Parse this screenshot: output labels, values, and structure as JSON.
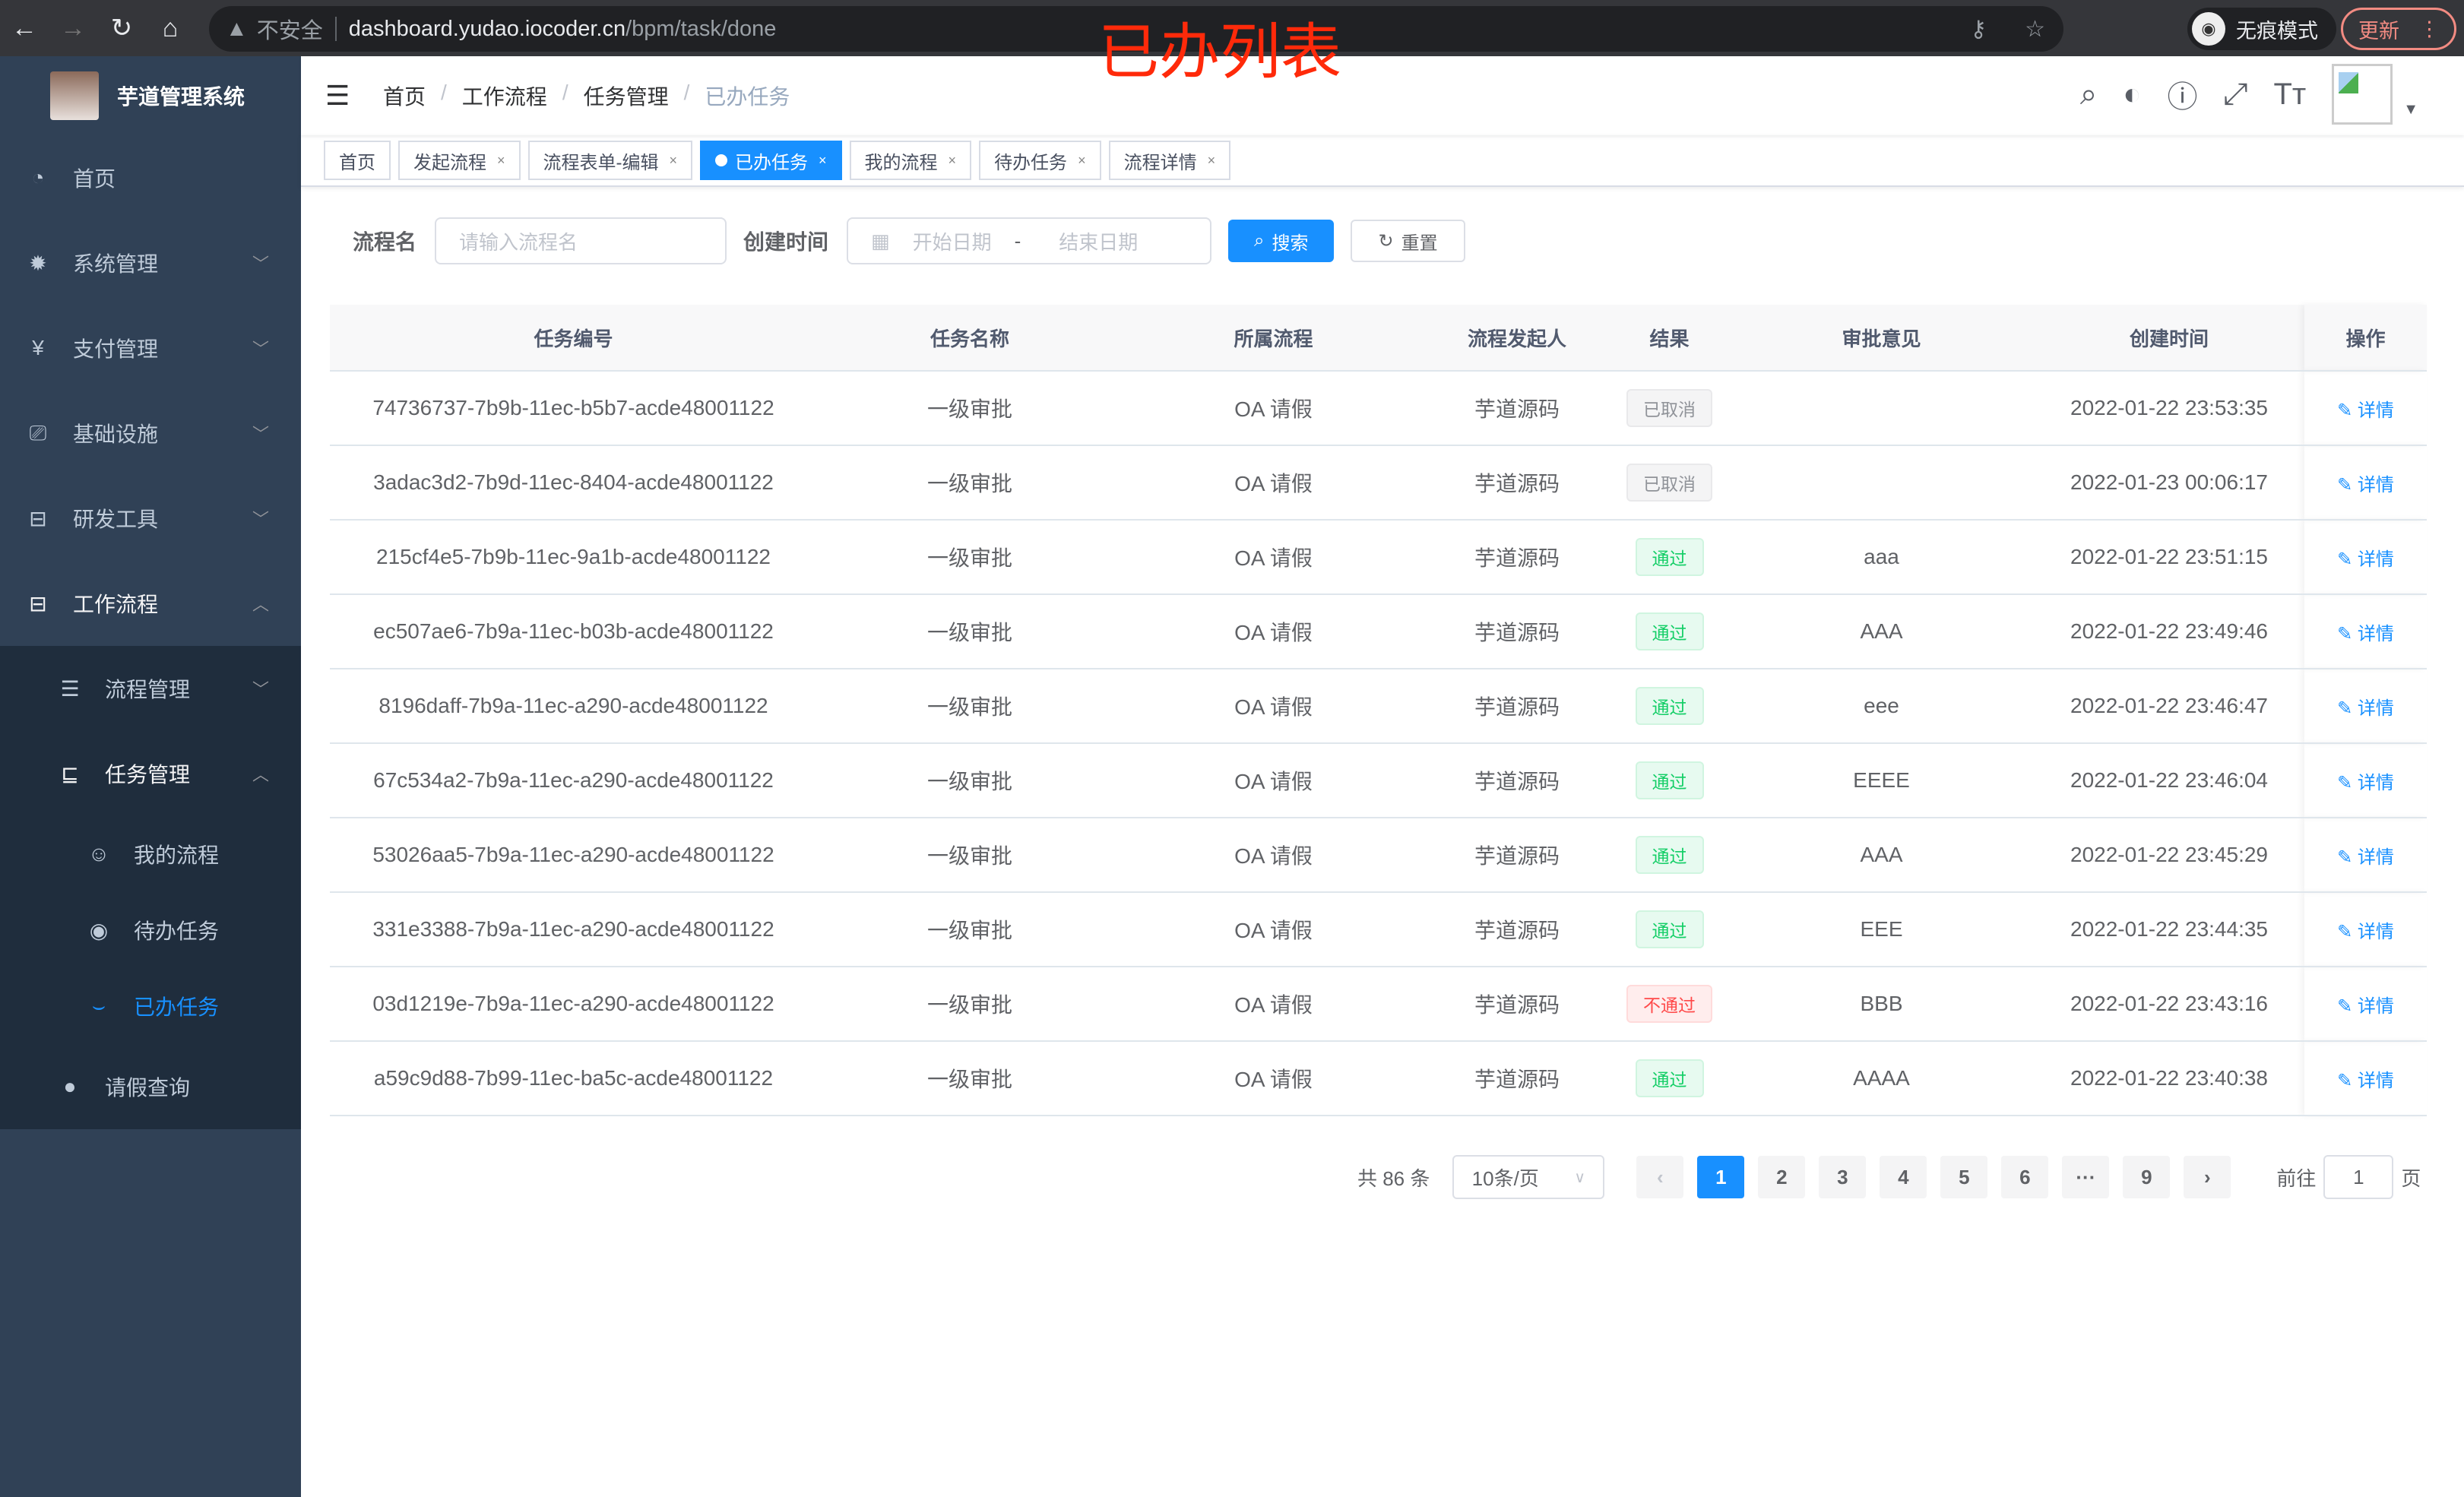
{
  "browser": {
    "security": "不安全",
    "host": "dashboard.yudao.iocoder.cn",
    "path": "/bpm/task/done",
    "incognito": "无痕模式",
    "update": "更新"
  },
  "annotation": "已办列表",
  "app": {
    "title": "芋道管理系统"
  },
  "sidebar": {
    "items": [
      {
        "label": "首页",
        "icon": "dashboard-icon"
      },
      {
        "label": "系统管理",
        "icon": "gear-icon"
      },
      {
        "label": "支付管理",
        "icon": "yen-icon"
      },
      {
        "label": "基础设施",
        "icon": "monitor-icon"
      },
      {
        "label": "研发工具",
        "icon": "toolbox-icon"
      },
      {
        "label": "工作流程",
        "icon": "toolbox-icon"
      }
    ],
    "sub": [
      {
        "label": "流程管理"
      },
      {
        "label": "任务管理"
      }
    ],
    "tasks": [
      {
        "label": "我的流程"
      },
      {
        "label": "待办任务"
      },
      {
        "label": "已办任务"
      }
    ],
    "leave": "请假查询"
  },
  "breadcrumb": [
    "首页",
    "工作流程",
    "任务管理",
    "已办任务"
  ],
  "tags": [
    {
      "label": "首页"
    },
    {
      "label": "发起流程"
    },
    {
      "label": "流程表单-编辑"
    },
    {
      "label": "已办任务"
    },
    {
      "label": "我的流程"
    },
    {
      "label": "待办任务"
    },
    {
      "label": "流程详情"
    }
  ],
  "form": {
    "name_label": "流程名",
    "name_placeholder": "请输入流程名",
    "time_label": "创建时间",
    "start": "开始日期",
    "dash": "-",
    "end": "结束日期",
    "search": "搜索",
    "reset": "重置"
  },
  "table": {
    "headers": [
      "任务编号",
      "任务名称",
      "所属流程",
      "流程发起人",
      "结果",
      "审批意见",
      "创建时间",
      "操作"
    ],
    "rows": [
      {
        "id": "74736737-7b9b-11ec-b5b7-acde48001122",
        "name": "一级审批",
        "process": "OA 请假",
        "starter": "芋道源码",
        "result": "已取消",
        "status": "cancel",
        "comment": "",
        "time": "2022-01-22 23:53:35",
        "action": "详情"
      },
      {
        "id": "3adac3d2-7b9d-11ec-8404-acde48001122",
        "name": "一级审批",
        "process": "OA 请假",
        "starter": "芋道源码",
        "result": "已取消",
        "status": "cancel",
        "comment": "",
        "time": "2022-01-23 00:06:17",
        "action": "详情"
      },
      {
        "id": "215cf4e5-7b9b-11ec-9a1b-acde48001122",
        "name": "一级审批",
        "process": "OA 请假",
        "starter": "芋道源码",
        "result": "通过",
        "status": "pass",
        "comment": "aaa",
        "time": "2022-01-22 23:51:15",
        "action": "详情"
      },
      {
        "id": "ec507ae6-7b9a-11ec-b03b-acde48001122",
        "name": "一级审批",
        "process": "OA 请假",
        "starter": "芋道源码",
        "result": "通过",
        "status": "pass",
        "comment": "AAA",
        "time": "2022-01-22 23:49:46",
        "action": "详情"
      },
      {
        "id": "8196daff-7b9a-11ec-a290-acde48001122",
        "name": "一级审批",
        "process": "OA 请假",
        "starter": "芋道源码",
        "result": "通过",
        "status": "pass",
        "comment": "eee",
        "time": "2022-01-22 23:46:47",
        "action": "详情"
      },
      {
        "id": "67c534a2-7b9a-11ec-a290-acde48001122",
        "name": "一级审批",
        "process": "OA 请假",
        "starter": "芋道源码",
        "result": "通过",
        "status": "pass",
        "comment": "EEEE",
        "time": "2022-01-22 23:46:04",
        "action": "详情"
      },
      {
        "id": "53026aa5-7b9a-11ec-a290-acde48001122",
        "name": "一级审批",
        "process": "OA 请假",
        "starter": "芋道源码",
        "result": "通过",
        "status": "pass",
        "comment": "AAA",
        "time": "2022-01-22 23:45:29",
        "action": "详情"
      },
      {
        "id": "331e3388-7b9a-11ec-a290-acde48001122",
        "name": "一级审批",
        "process": "OA 请假",
        "starter": "芋道源码",
        "result": "通过",
        "status": "pass",
        "comment": "EEE",
        "time": "2022-01-22 23:44:35",
        "action": "详情"
      },
      {
        "id": "03d1219e-7b9a-11ec-a290-acde48001122",
        "name": "一级审批",
        "process": "OA 请假",
        "starter": "芋道源码",
        "result": "不通过",
        "status": "fail",
        "comment": "BBB",
        "time": "2022-01-22 23:43:16",
        "action": "详情"
      },
      {
        "id": "a59c9d88-7b99-11ec-ba5c-acde48001122",
        "name": "一级审批",
        "process": "OA 请假",
        "starter": "芋道源码",
        "result": "通过",
        "status": "pass",
        "comment": "AAAA",
        "time": "2022-01-22 23:40:38",
        "action": "详情"
      }
    ]
  },
  "pagination": {
    "total": "共 86 条",
    "page_size": "10条/页",
    "pages": [
      "1",
      "2",
      "3",
      "4",
      "5",
      "6",
      "···",
      "9"
    ],
    "current": "1",
    "goto": "前往",
    "goto_value": "1",
    "page_unit": "页"
  },
  "colors": {
    "primary": "#1890ff",
    "sidebar": "#304156",
    "submenu": "#1f2d3d"
  }
}
